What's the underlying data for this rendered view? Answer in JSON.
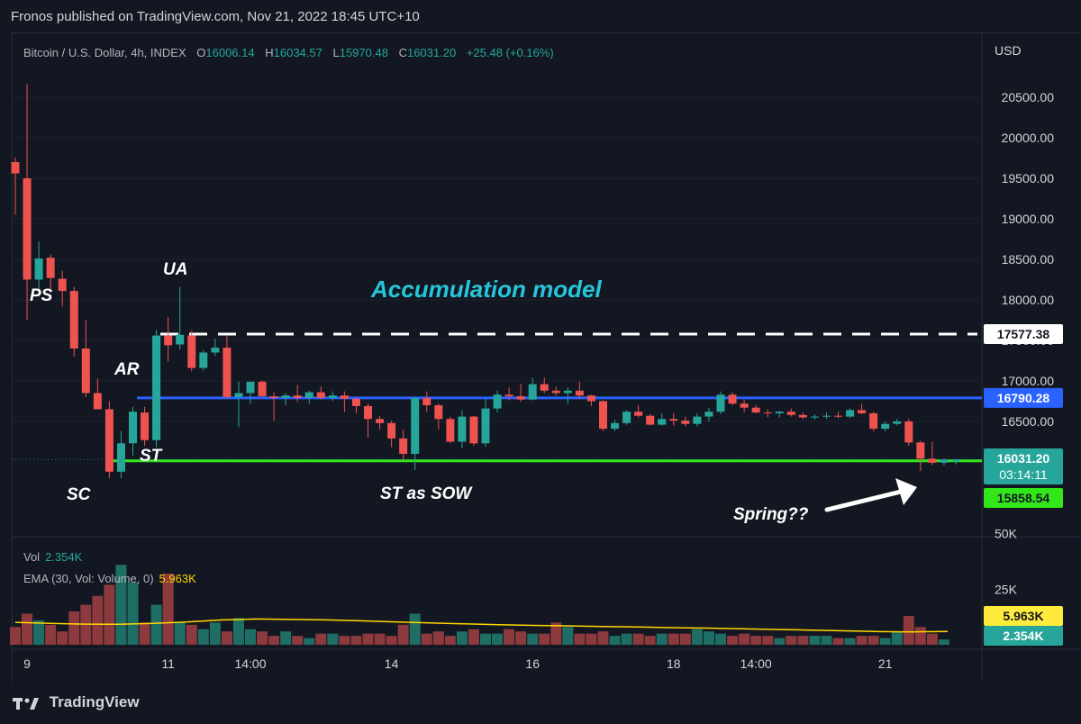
{
  "header": {
    "published_by": "Fronos published on TradingView.com, Nov 21, 2022 18:45 UTC+10"
  },
  "legend": {
    "symbol": "Bitcoin / U.S. Dollar, 4h, INDEX",
    "open_label": "O",
    "open": "16006.14",
    "high_label": "H",
    "high": "16034.57",
    "low_label": "L",
    "low": "15970.48",
    "close_label": "C",
    "close": "16031.20",
    "change": "+25.48 (+0.16%)"
  },
  "volume_legend": {
    "vol_label": "Vol",
    "vol_value": "2.354K",
    "ema_label": "EMA (30, Vol: Volume, 0)",
    "ema_value": "5.963K"
  },
  "footer": {
    "brand": "TradingView"
  },
  "colors": {
    "bg": "#131722",
    "up": "#26a69a",
    "down": "#ef5350",
    "upvol": "#1f6e66",
    "downvol": "#8c3a3d",
    "blue_line": "#2962ff",
    "green_line": "#32e61a",
    "annotation": "#26c6da",
    "ema": "#ffd600"
  },
  "chart_data": {
    "type": "candlestick",
    "title": "Bitcoin / U.S. Dollar, 4h, INDEX",
    "currency": "USD",
    "y_ticks": [
      16500,
      17000,
      17500,
      18000,
      18500,
      19000,
      19500,
      20000,
      20500
    ],
    "y_tick_labels": [
      "16500.00",
      "17000.00",
      "17500.00",
      "18000.00",
      "18500.00",
      "19000.00",
      "19500.00",
      "20000.00",
      "20500.00"
    ],
    "ylim": [
      15460,
      20930
    ],
    "x_ticks": [
      {
        "index": 1,
        "label": "9"
      },
      {
        "index": 13,
        "label": "11"
      },
      {
        "index": 20,
        "label": "14:00"
      },
      {
        "index": 32,
        "label": "14"
      },
      {
        "index": 44,
        "label": "16"
      },
      {
        "index": 56,
        "label": "18"
      },
      {
        "index": 63,
        "label": "14:00"
      },
      {
        "index": 74,
        "label": "21"
      }
    ],
    "candles": [
      [
        19700,
        19755,
        19050,
        19560
      ],
      [
        19500,
        20660,
        17750,
        18250
      ],
      [
        18250,
        18720,
        18040,
        18510
      ],
      [
        18520,
        18560,
        18100,
        18270
      ],
      [
        18260,
        18360,
        17920,
        18110
      ],
      [
        18110,
        18160,
        17300,
        17400
      ],
      [
        17400,
        17750,
        16800,
        16850
      ],
      [
        16850,
        17030,
        16650,
        16650
      ],
      [
        16650,
        16750,
        15800,
        15880
      ],
      [
        15880,
        16380,
        15800,
        16230
      ],
      [
        16230,
        16680,
        16080,
        16620
      ],
      [
        16610,
        16680,
        16200,
        16270
      ],
      [
        16270,
        17630,
        16180,
        17560
      ],
      [
        17560,
        17790,
        17240,
        17440
      ],
      [
        17450,
        18160,
        17390,
        17570
      ],
      [
        17560,
        17620,
        17120,
        17160
      ],
      [
        17160,
        17380,
        17130,
        17350
      ],
      [
        17350,
        17520,
        17310,
        17410
      ],
      [
        17410,
        17560,
        16780,
        16800
      ],
      [
        16800,
        16990,
        16430,
        16850
      ],
      [
        16850,
        16990,
        16720,
        16990
      ],
      [
        16990,
        17010,
        16810,
        16810
      ],
      [
        16810,
        16860,
        16510,
        16790
      ],
      [
        16790,
        16850,
        16700,
        16820
      ],
      [
        16820,
        16950,
        16740,
        16790
      ],
      [
        16790,
        16880,
        16720,
        16860
      ],
      [
        16860,
        16930,
        16770,
        16790
      ],
      [
        16790,
        16870,
        16750,
        16820
      ],
      [
        16820,
        16870,
        16620,
        16780
      ],
      [
        16780,
        16800,
        16600,
        16690
      ],
      [
        16690,
        16720,
        16300,
        16530
      ],
      [
        16530,
        16570,
        16400,
        16480
      ],
      [
        16480,
        16510,
        16180,
        16290
      ],
      [
        16290,
        16400,
        16020,
        16100
      ],
      [
        16100,
        16800,
        15900,
        16790
      ],
      [
        16790,
        16870,
        16620,
        16700
      ],
      [
        16700,
        16720,
        16400,
        16530
      ],
      [
        16530,
        16560,
        16230,
        16250
      ],
      [
        16250,
        16640,
        16170,
        16560
      ],
      [
        16560,
        16570,
        16200,
        16230
      ],
      [
        16230,
        16780,
        16190,
        16660
      ],
      [
        16660,
        16880,
        16610,
        16830
      ],
      [
        16830,
        16920,
        16760,
        16810
      ],
      [
        16810,
        16960,
        16740,
        16770
      ],
      [
        16770,
        17040,
        16760,
        16960
      ],
      [
        16960,
        17040,
        16850,
        16880
      ],
      [
        16880,
        16930,
        16820,
        16850
      ],
      [
        16850,
        16920,
        16720,
        16880
      ],
      [
        16880,
        16990,
        16780,
        16820
      ],
      [
        16820,
        16830,
        16690,
        16750
      ],
      [
        16750,
        16760,
        16380,
        16410
      ],
      [
        16410,
        16520,
        16380,
        16480
      ],
      [
        16480,
        16640,
        16460,
        16620
      ],
      [
        16620,
        16700,
        16550,
        16570
      ],
      [
        16570,
        16590,
        16450,
        16460
      ],
      [
        16460,
        16600,
        16450,
        16530
      ],
      [
        16530,
        16600,
        16450,
        16510
      ],
      [
        16510,
        16560,
        16440,
        16470
      ],
      [
        16470,
        16600,
        16440,
        16560
      ],
      [
        16560,
        16670,
        16500,
        16620
      ],
      [
        16620,
        16870,
        16590,
        16830
      ],
      [
        16830,
        16860,
        16700,
        16720
      ],
      [
        16720,
        16770,
        16610,
        16670
      ],
      [
        16670,
        16700,
        16600,
        16610
      ],
      [
        16610,
        16650,
        16550,
        16600
      ],
      [
        16600,
        16630,
        16550,
        16620
      ],
      [
        16620,
        16660,
        16560,
        16580
      ],
      [
        16580,
        16610,
        16530,
        16550
      ],
      [
        16550,
        16590,
        16520,
        16560
      ],
      [
        16560,
        16610,
        16530,
        16570
      ],
      [
        16570,
        16620,
        16540,
        16560
      ],
      [
        16560,
        16660,
        16540,
        16640
      ],
      [
        16640,
        16720,
        16590,
        16600
      ],
      [
        16600,
        16620,
        16380,
        16410
      ],
      [
        16410,
        16500,
        16380,
        16470
      ],
      [
        16470,
        16530,
        16450,
        16500
      ],
      [
        16500,
        16530,
        16200,
        16240
      ],
      [
        16240,
        16260,
        15890,
        16040
      ],
      [
        16040,
        16250,
        15960,
        15990
      ],
      [
        15990,
        16040,
        15960,
        16030
      ],
      [
        16006.14,
        16034.57,
        15970.48,
        16031.2
      ]
    ],
    "volume": {
      "ylim": [
        0,
        55000
      ],
      "y_ticks": [
        25000,
        50000
      ],
      "y_tick_labels": [
        "25K",
        "50K"
      ],
      "values": [
        8,
        14,
        11,
        9,
        6,
        15,
        18,
        22,
        27,
        36,
        28,
        10,
        18,
        32,
        10,
        9,
        7,
        10,
        6,
        12,
        7,
        6,
        4,
        6,
        4,
        3,
        5,
        5,
        4,
        4,
        5,
        5,
        4,
        9,
        14,
        5,
        6,
        4,
        6,
        7,
        5,
        5,
        7,
        6,
        5,
        5,
        10,
        8,
        5,
        5,
        6,
        4,
        5,
        5,
        4,
        5,
        5,
        5,
        7,
        6,
        5,
        4,
        5,
        4,
        4,
        3,
        4,
        4,
        4,
        4,
        3,
        3,
        4,
        4,
        3,
        6,
        13,
        8,
        5,
        2.354
      ]
    },
    "ema_values": [
      10.1,
      9.6,
      9.3,
      9.2,
      9.6,
      10.3,
      11.2,
      11.6,
      11.4,
      11.2,
      10.8,
      10.3,
      9.8,
      9.4,
      9.0,
      8.7,
      8.5,
      8.2,
      8.0,
      7.7,
      7.5,
      7.2,
      6.9,
      6.6,
      6.3,
      5.9,
      5.8,
      5.963
    ],
    "price_lines": [
      {
        "name": "dashed",
        "value": 17577.38,
        "label": "17577.38"
      },
      {
        "name": "blue",
        "value": 16790.28,
        "label": "16790.28"
      },
      {
        "name": "green",
        "value": 15858.54,
        "label": "15858.54"
      }
    ],
    "last_price": {
      "value": 16031.2,
      "label": "16031.20",
      "countdown": "03:14:11"
    },
    "volume_badges": {
      "ema": "5.963K",
      "vol": "2.354K"
    },
    "annotations": [
      {
        "text": "Accumulation model"
      },
      {
        "text": "PS"
      },
      {
        "text": "UA"
      },
      {
        "text": "AR"
      },
      {
        "text": "ST"
      },
      {
        "text": "SC"
      },
      {
        "text": "ST as SOW"
      },
      {
        "text": "Spring??"
      }
    ]
  }
}
